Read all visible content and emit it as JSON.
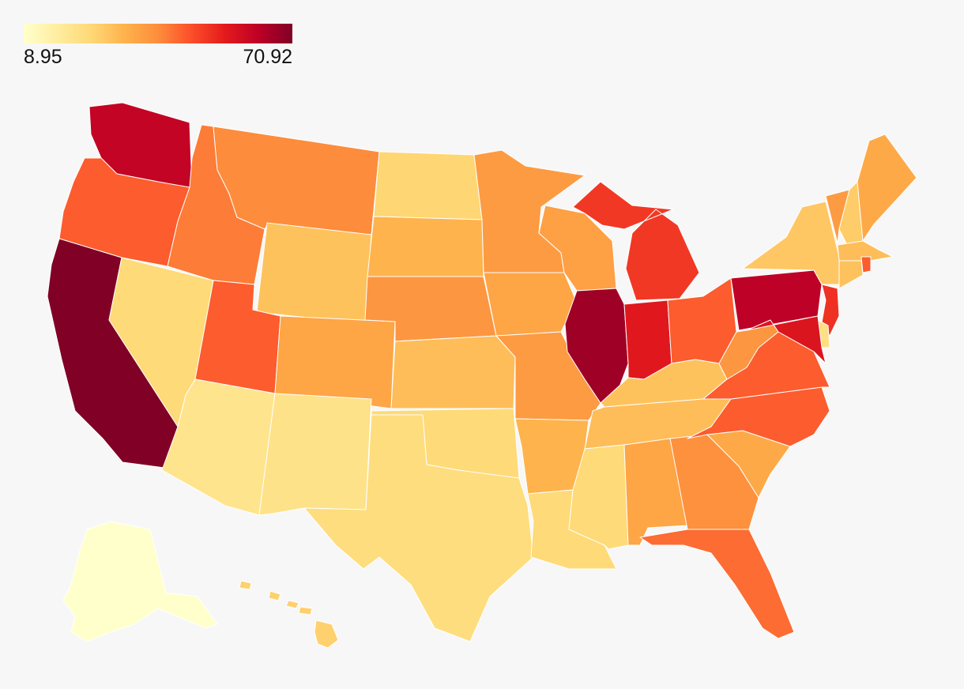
{
  "legend": {
    "min_label": "8.95",
    "max_label": "70.92",
    "min": 8.95,
    "max": 70.92,
    "colors": [
      "#ffffcc",
      "#ffeda0",
      "#fed976",
      "#feb24c",
      "#fd8d3c",
      "#fc4e2a",
      "#e31a1c",
      "#bd0026",
      "#800026"
    ]
  },
  "states": [
    {
      "id": "WA",
      "value": 62
    },
    {
      "id": "OR",
      "value": 46
    },
    {
      "id": "CA",
      "value": 70.92
    },
    {
      "id": "ID",
      "value": 42
    },
    {
      "id": "NV",
      "value": 24
    },
    {
      "id": "MT",
      "value": 40
    },
    {
      "id": "WY",
      "value": 29
    },
    {
      "id": "UT",
      "value": 46
    },
    {
      "id": "AZ",
      "value": 20
    },
    {
      "id": "CO",
      "value": 35
    },
    {
      "id": "NM",
      "value": 21
    },
    {
      "id": "ND",
      "value": 25
    },
    {
      "id": "SD",
      "value": 32
    },
    {
      "id": "NE",
      "value": 38
    },
    {
      "id": "KS",
      "value": 30
    },
    {
      "id": "OK",
      "value": 24
    },
    {
      "id": "TX",
      "value": 23
    },
    {
      "id": "MN",
      "value": 37
    },
    {
      "id": "IA",
      "value": 35
    },
    {
      "id": "MO",
      "value": 37
    },
    {
      "id": "AR",
      "value": 32
    },
    {
      "id": "LA",
      "value": 24
    },
    {
      "id": "WI",
      "value": 36
    },
    {
      "id": "IL",
      "value": 67
    },
    {
      "id": "MI",
      "value": 51
    },
    {
      "id": "IN",
      "value": 56
    },
    {
      "id": "OH",
      "value": 46
    },
    {
      "id": "KY",
      "value": 29
    },
    {
      "id": "TN",
      "value": 30
    },
    {
      "id": "MS",
      "value": 24
    },
    {
      "id": "AL",
      "value": 35
    },
    {
      "id": "GA",
      "value": 39
    },
    {
      "id": "FL",
      "value": 44
    },
    {
      "id": "SC",
      "value": 34
    },
    {
      "id": "NC",
      "value": 46
    },
    {
      "id": "VA",
      "value": 46
    },
    {
      "id": "WV",
      "value": 38
    },
    {
      "id": "PA",
      "value": 63
    },
    {
      "id": "NY",
      "value": 28
    },
    {
      "id": "VT",
      "value": 37
    },
    {
      "id": "NH",
      "value": 27
    },
    {
      "id": "ME",
      "value": 34
    },
    {
      "id": "MA",
      "value": 30
    },
    {
      "id": "CT",
      "value": 29
    },
    {
      "id": "RI",
      "value": 46
    },
    {
      "id": "NJ",
      "value": 52
    },
    {
      "id": "DE",
      "value": 22
    },
    {
      "id": "MD",
      "value": 57
    },
    {
      "id": "AK",
      "value": 8.95
    },
    {
      "id": "HI",
      "value": 26
    }
  ]
}
